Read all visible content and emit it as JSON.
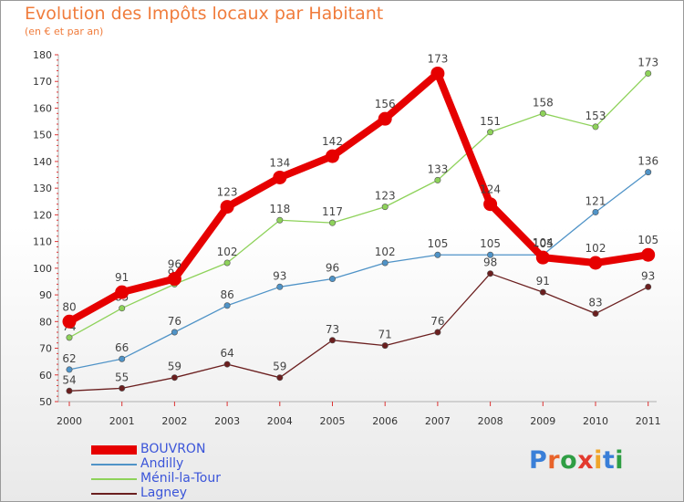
{
  "title": "Evolution des Impôts locaux par Habitant",
  "subtitle": "(en € et par an)",
  "logo": {
    "text": "Proxiti",
    "letter_colors": [
      "#3a7fd8",
      "#e8632a",
      "#2f9e44",
      "#e33a2e",
      "#f0a52a",
      "#3a7fd8",
      "#2f9e44"
    ]
  },
  "chart_data": {
    "type": "line",
    "title": "Evolution des Impôts locaux par Habitant",
    "subtitle": "(en € et par an)",
    "xlabel": "",
    "ylabel": "",
    "ylim": [
      50,
      180
    ],
    "yticks": [
      "50",
      "60",
      "70",
      "80",
      "90",
      "100",
      "110",
      "120",
      "130",
      "140",
      "150",
      "160",
      "170",
      "180"
    ],
    "categories": [
      "2000",
      "2001",
      "2002",
      "2003",
      "2004",
      "2005",
      "2006",
      "2007",
      "2008",
      "2009",
      "2010",
      "2011"
    ],
    "grid": false,
    "legend_position": "bottom-left",
    "series": [
      {
        "name": "Lagney",
        "color": "#6b1f1f",
        "values": [
          54,
          55,
          59,
          64,
          59,
          73,
          71,
          76,
          98,
          91,
          83,
          93
        ],
        "labels": [
          "54",
          "55",
          "59",
          "64",
          "59",
          "73",
          "71",
          "76",
          "98",
          "91",
          "83",
          "93"
        ]
      },
      {
        "name": "Ménil-la-Tour",
        "color": "#8ed25a",
        "values": [
          74,
          85,
          94,
          102,
          118,
          117,
          123,
          133,
          151,
          158,
          153,
          173
        ],
        "labels": [
          "74",
          "85",
          "94",
          "102",
          "118",
          "117",
          "123",
          "133",
          "151",
          "158",
          "153",
          "173"
        ]
      },
      {
        "name": "Andilly",
        "color": "#4f93c7",
        "values": [
          62,
          66,
          76,
          86,
          93,
          96,
          102,
          105,
          105,
          105,
          121,
          136
        ],
        "labels": [
          "62",
          "66",
          "76",
          "86",
          "93",
          "96",
          "102",
          "105",
          "105",
          "105",
          "121",
          "136"
        ]
      },
      {
        "name": "BOUVRON",
        "color": "#e60000",
        "values": [
          80,
          91,
          96,
          123,
          134,
          142,
          156,
          173,
          124,
          104,
          102,
          105
        ],
        "labels": [
          "80",
          "91",
          "96",
          "123",
          "134",
          "142",
          "156",
          "173",
          "124",
          "104",
          "102",
          "105"
        ]
      }
    ],
    "legend_order": [
      "BOUVRON",
      "Andilly",
      "Ménil-la-Tour",
      "Lagney"
    ]
  }
}
